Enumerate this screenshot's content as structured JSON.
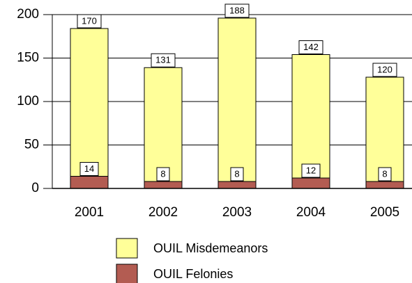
{
  "chart_data": {
    "type": "stacked_bar",
    "categories": [
      "2001",
      "2002",
      "2003",
      "2004",
      "2005"
    ],
    "series": [
      {
        "name": "OUIL Felonies",
        "color": "#b35c52",
        "values": [
          14,
          8,
          8,
          12,
          8
        ]
      },
      {
        "name": "OUIL Misdemeanors",
        "color": "#ffff99",
        "values": [
          170,
          131,
          188,
          142,
          120
        ]
      }
    ],
    "ylim": [
      0,
      200
    ],
    "yticks": [
      0,
      50,
      100,
      150,
      200
    ],
    "grid": true
  }
}
